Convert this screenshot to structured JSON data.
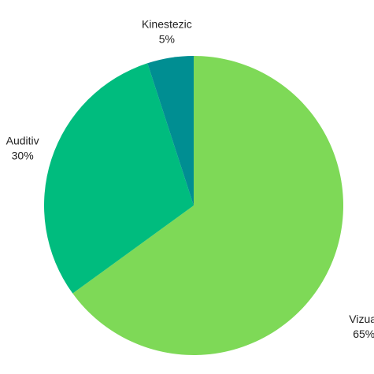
{
  "chart_data": {
    "type": "pie",
    "start_angle_deg": 0,
    "direction": "clockwise",
    "slices": [
      {
        "label": "Vizual",
        "value": 65,
        "value_label": "65%",
        "color": "#7ed957"
      },
      {
        "label": "Auditiv",
        "value": 30,
        "value_label": "30%",
        "color": "#00bc7e"
      },
      {
        "label": "Kinestezic",
        "value": 5,
        "value_label": "5%",
        "color": "#008e92"
      }
    ],
    "legend": "none",
    "labels": "outside"
  }
}
